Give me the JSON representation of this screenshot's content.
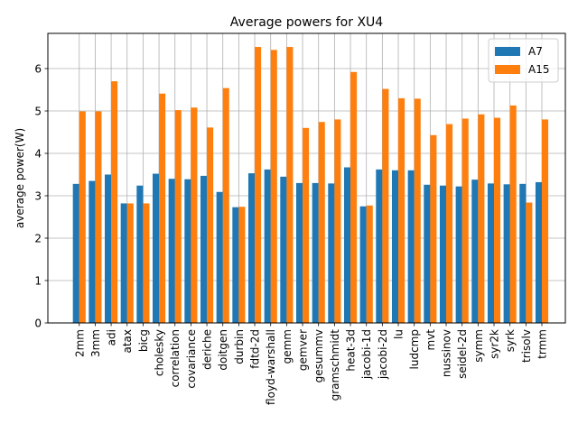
{
  "colors": {
    "A7": "#1f77b4",
    "A15": "#ff7f0e",
    "grid": "#b0b0b0",
    "axes": "#000000"
  },
  "chart_data": {
    "type": "bar",
    "title": "Average powers for XU4",
    "xlabel": "",
    "ylabel": "average power(W)",
    "ylim": [
      0,
      6.83
    ],
    "yticks": [
      0,
      1,
      2,
      3,
      4,
      5,
      6
    ],
    "grid": true,
    "legend_position": "top-right",
    "categories": [
      "2mm",
      "3mm",
      "adi",
      "atax",
      "bicg",
      "cholesky",
      "correlation",
      "covariance",
      "deriche",
      "doitgen",
      "durbin",
      "fdtd-2d",
      "floyd-warshall",
      "gemm",
      "gemver",
      "gesummv",
      "gramschmidt",
      "heat-3d",
      "jacobi-1d",
      "jacobi-2d",
      "lu",
      "ludcmp",
      "mvt",
      "nussinov",
      "seidel-2d",
      "symm",
      "syr2k",
      "syrk",
      "trisolv",
      "trmm"
    ],
    "series": [
      {
        "name": "A7",
        "values": [
          3.28,
          3.35,
          3.5,
          2.82,
          3.24,
          3.52,
          3.4,
          3.39,
          3.47,
          3.09,
          2.73,
          3.53,
          3.62,
          3.45,
          3.3,
          3.3,
          3.29,
          3.67,
          2.75,
          3.62,
          3.6,
          3.6,
          3.26,
          3.24,
          3.22,
          3.38,
          3.29,
          3.27,
          3.28,
          3.32
        ]
      },
      {
        "name": "A15",
        "values": [
          4.99,
          4.99,
          5.7,
          2.82,
          2.82,
          5.41,
          5.02,
          5.08,
          4.61,
          5.54,
          2.74,
          6.51,
          6.44,
          6.51,
          4.6,
          4.74,
          4.8,
          5.92,
          2.77,
          5.52,
          5.3,
          5.29,
          4.43,
          4.69,
          4.82,
          4.92,
          4.84,
          5.13,
          2.84,
          4.8
        ]
      }
    ]
  }
}
